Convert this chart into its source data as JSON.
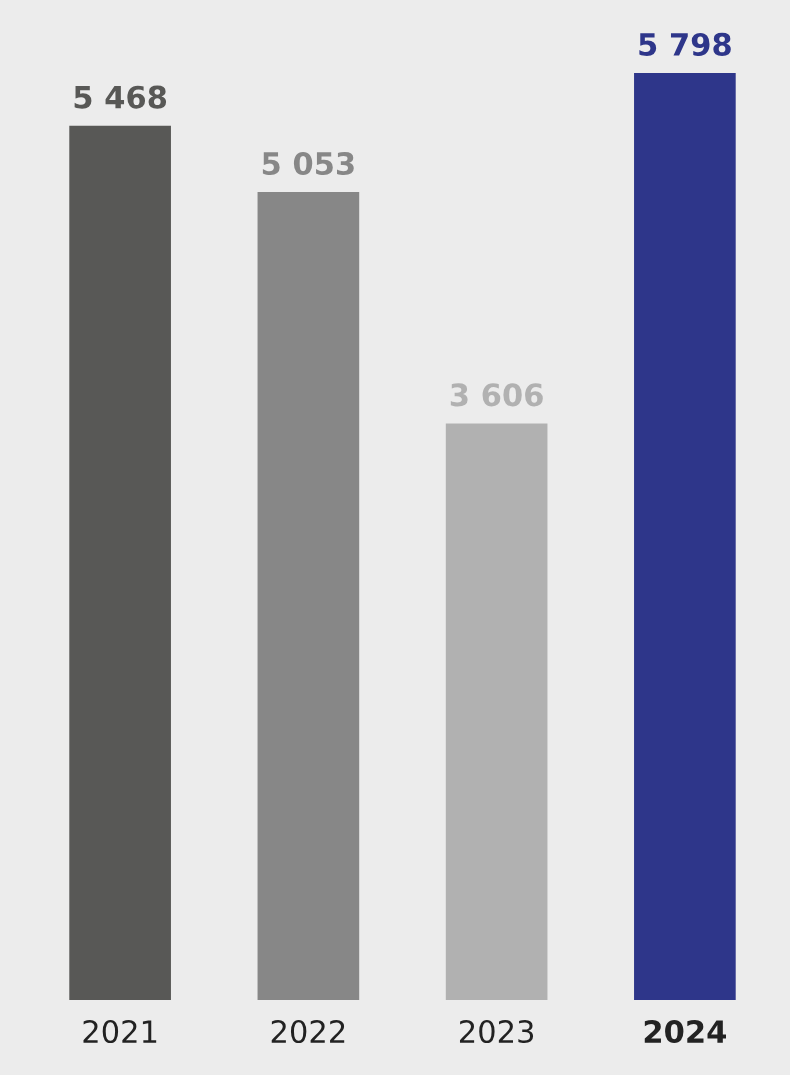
{
  "chart_data": {
    "type": "bar",
    "categories": [
      "2021",
      "2022",
      "2023",
      "2024"
    ],
    "values": [
      5468,
      5053,
      3606,
      5798
    ],
    "value_labels": [
      "5 468",
      "5 053",
      "3 606",
      "5 798"
    ],
    "colors": [
      "#585856",
      "#878787",
      "#b1b1b1",
      "#2e368a"
    ],
    "grid": false,
    "legend": false
  }
}
